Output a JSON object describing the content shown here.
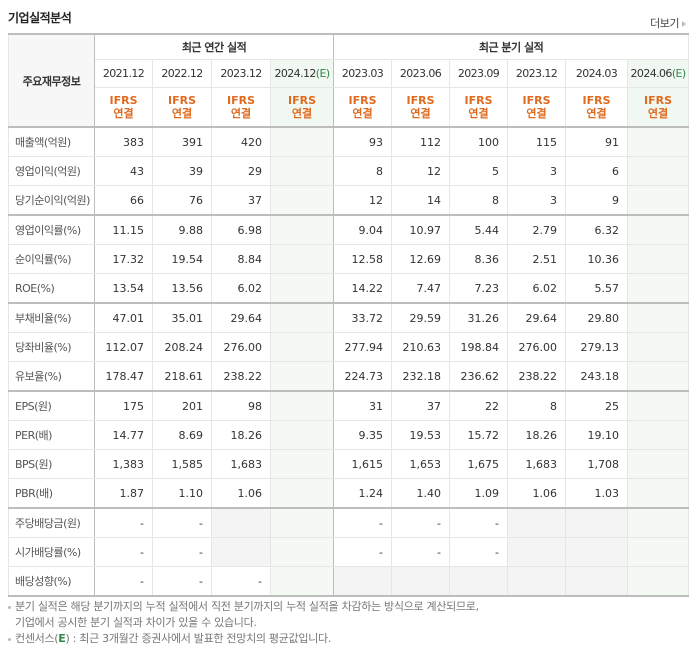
{
  "title": "기업실적분석",
  "more_label": "더보기",
  "header": {
    "row_header": "주요재무정보",
    "annual_group": "최근 연간 실적",
    "quarter_group": "최근 분기 실적",
    "annual_periods": [
      {
        "label": "2021.12",
        "estimate": false
      },
      {
        "label": "2022.12",
        "estimate": false
      },
      {
        "label": "2023.12",
        "estimate": false
      },
      {
        "label": "2024.12",
        "estimate": true
      }
    ],
    "quarter_periods": [
      {
        "label": "2023.03",
        "estimate": false
      },
      {
        "label": "2023.06",
        "estimate": false
      },
      {
        "label": "2023.09",
        "estimate": false
      },
      {
        "label": "2023.12",
        "estimate": false
      },
      {
        "label": "2024.03",
        "estimate": false
      },
      {
        "label": "2024.06",
        "estimate": true
      }
    ],
    "estimate_mark": "(E)",
    "basis_line1": "IFRS",
    "basis_line2": "연결"
  },
  "rows": [
    {
      "label": "매출액(억원)",
      "annual": [
        "383",
        "391",
        "420",
        ""
      ],
      "quarter": [
        "93",
        "112",
        "100",
        "115",
        "91",
        ""
      ]
    },
    {
      "label": "영업이익(억원)",
      "annual": [
        "43",
        "39",
        "29",
        ""
      ],
      "quarter": [
        "8",
        "12",
        "5",
        "3",
        "6",
        ""
      ]
    },
    {
      "label": "당기순이익(억원)",
      "annual": [
        "66",
        "76",
        "37",
        ""
      ],
      "quarter": [
        "12",
        "14",
        "8",
        "3",
        "9",
        ""
      ]
    },
    {
      "label": "영업이익률(%)",
      "annual": [
        "11.15",
        "9.88",
        "6.98",
        ""
      ],
      "quarter": [
        "9.04",
        "10.97",
        "5.44",
        "2.79",
        "6.32",
        ""
      ]
    },
    {
      "label": "순이익률(%)",
      "annual": [
        "17.32",
        "19.54",
        "8.84",
        ""
      ],
      "quarter": [
        "12.58",
        "12.69",
        "8.36",
        "2.51",
        "10.36",
        ""
      ]
    },
    {
      "label": "ROE(%)",
      "annual": [
        "13.54",
        "13.56",
        "6.02",
        ""
      ],
      "quarter": [
        "14.22",
        "7.47",
        "7.23",
        "6.02",
        "5.57",
        ""
      ]
    },
    {
      "label": "부채비율(%)",
      "annual": [
        "47.01",
        "35.01",
        "29.64",
        ""
      ],
      "quarter": [
        "33.72",
        "29.59",
        "31.26",
        "29.64",
        "29.80",
        ""
      ]
    },
    {
      "label": "당좌비율(%)",
      "annual": [
        "112.07",
        "208.24",
        "276.00",
        ""
      ],
      "quarter": [
        "277.94",
        "210.63",
        "198.84",
        "276.00",
        "279.13",
        ""
      ]
    },
    {
      "label": "유보율(%)",
      "annual": [
        "178.47",
        "218.61",
        "238.22",
        ""
      ],
      "quarter": [
        "224.73",
        "232.18",
        "236.62",
        "238.22",
        "243.18",
        ""
      ]
    },
    {
      "label": "EPS(원)",
      "annual": [
        "175",
        "201",
        "98",
        ""
      ],
      "quarter": [
        "31",
        "37",
        "22",
        "8",
        "25",
        ""
      ]
    },
    {
      "label": "PER(배)",
      "annual": [
        "14.77",
        "8.69",
        "18.26",
        ""
      ],
      "quarter": [
        "9.35",
        "19.53",
        "15.72",
        "18.26",
        "19.10",
        ""
      ]
    },
    {
      "label": "BPS(원)",
      "annual": [
        "1,383",
        "1,585",
        "1,683",
        ""
      ],
      "quarter": [
        "1,615",
        "1,653",
        "1,675",
        "1,683",
        "1,708",
        ""
      ]
    },
    {
      "label": "PBR(배)",
      "annual": [
        "1.87",
        "1.10",
        "1.06",
        ""
      ],
      "quarter": [
        "1.24",
        "1.40",
        "1.09",
        "1.06",
        "1.03",
        ""
      ]
    },
    {
      "label": "주당배당금(원)",
      "annual": [
        "-",
        "-",
        "",
        ""
      ],
      "quarter": [
        "-",
        "-",
        "-",
        "",
        "",
        ""
      ]
    },
    {
      "label": "시가배당률(%)",
      "annual": [
        "-",
        "-",
        "",
        ""
      ],
      "quarter": [
        "-",
        "-",
        "-",
        "",
        "",
        ""
      ]
    },
    {
      "label": "배당성향(%)",
      "annual": [
        "-",
        "-",
        "-",
        ""
      ],
      "quarter": [
        "",
        "",
        "",
        "",
        "",
        ""
      ]
    }
  ],
  "notes": {
    "line1": "분기 실적은 해당 분기까지의 누적 실적에서 직전 분기까지의 누적 실적을 차감하는 방식으로 계산되므로,",
    "line2": "기업에서 공시한 분기 실적과 차이가 있을 수 있습니다.",
    "line3_prefix": "컨센서스(",
    "line3_mark": "E",
    "line3_suffix": ") : 최근 3개월간 증권사에서 발표한 전망치의 평균값입니다."
  },
  "colors": {
    "basis_orange": "#e06b1f",
    "estimate_green": "#2e8a4a",
    "estimate_bg": "#f4f9f4",
    "empty_gray_bg": "#f4f4f4",
    "separator": "#bdbdbd"
  }
}
